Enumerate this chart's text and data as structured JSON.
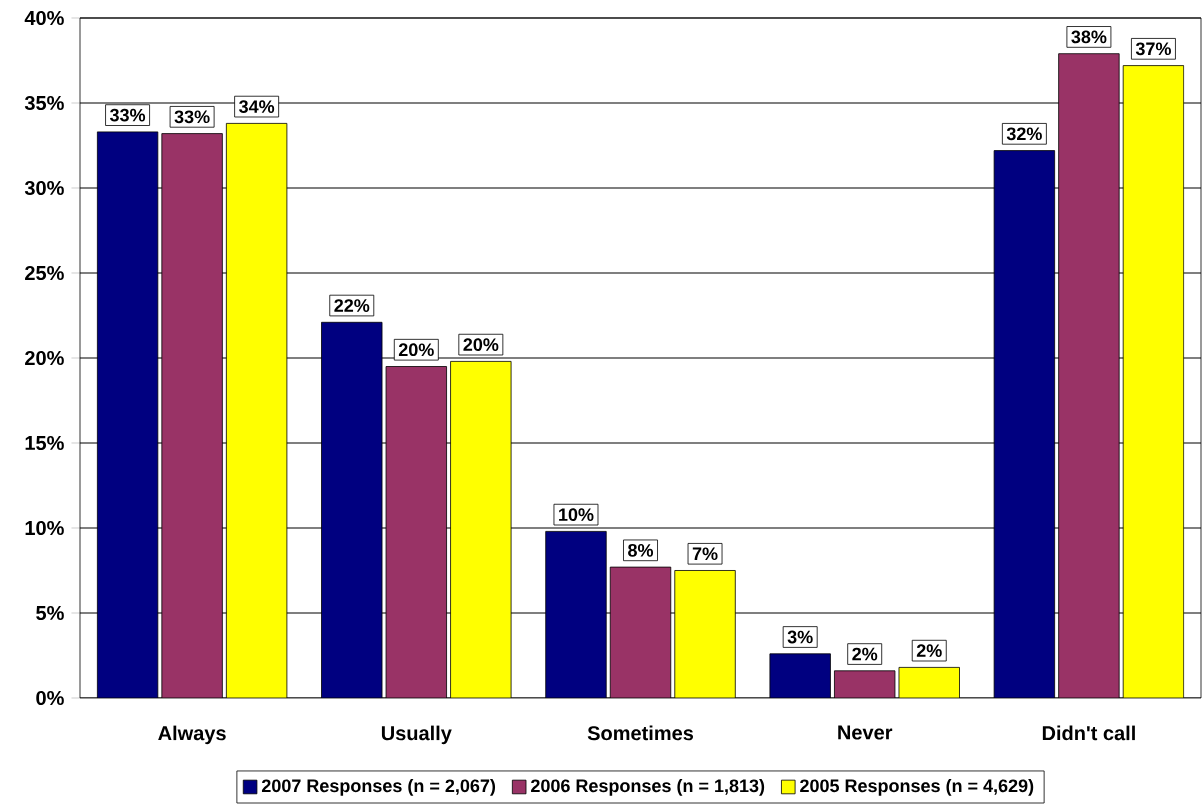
{
  "chart_data": {
    "type": "bar",
    "categories": [
      "Always",
      "Usually",
      "Sometimes",
      "Never",
      "Didn't call"
    ],
    "series": [
      {
        "name": "2007 Responses (n = 2,067)",
        "color": "#000080",
        "values": [
          33.3,
          22.1,
          9.8,
          2.6,
          32.2
        ],
        "value_labels": [
          "33%",
          "22%",
          "10%",
          "3%",
          "32%"
        ]
      },
      {
        "name": "2006 Responses (n = 1,813)",
        "color": "#993366",
        "values": [
          33.2,
          19.5,
          7.7,
          1.6,
          37.9
        ],
        "value_labels": [
          "33%",
          "20%",
          "8%",
          "2%",
          "38%"
        ]
      },
      {
        "name": "2005 Responses (n = 4,629)",
        "color": "#ffff00",
        "values": [
          33.8,
          19.8,
          7.5,
          1.8,
          37.2
        ],
        "value_labels": [
          "34%",
          "20%",
          "7%",
          "2%",
          "37%"
        ]
      }
    ],
    "ylim": [
      0,
      40
    ],
    "yticks": [
      {
        "value": 0,
        "label": "0%"
      },
      {
        "value": 5,
        "label": "5%"
      },
      {
        "value": 10,
        "label": "10%"
      },
      {
        "value": 15,
        "label": "15%"
      },
      {
        "value": 20,
        "label": "20%"
      },
      {
        "value": 25,
        "label": "25%"
      },
      {
        "value": 30,
        "label": "30%"
      },
      {
        "value": 35,
        "label": "35%"
      },
      {
        "value": 40,
        "label": "40%"
      }
    ],
    "grid": "y",
    "legend": "bottom"
  }
}
